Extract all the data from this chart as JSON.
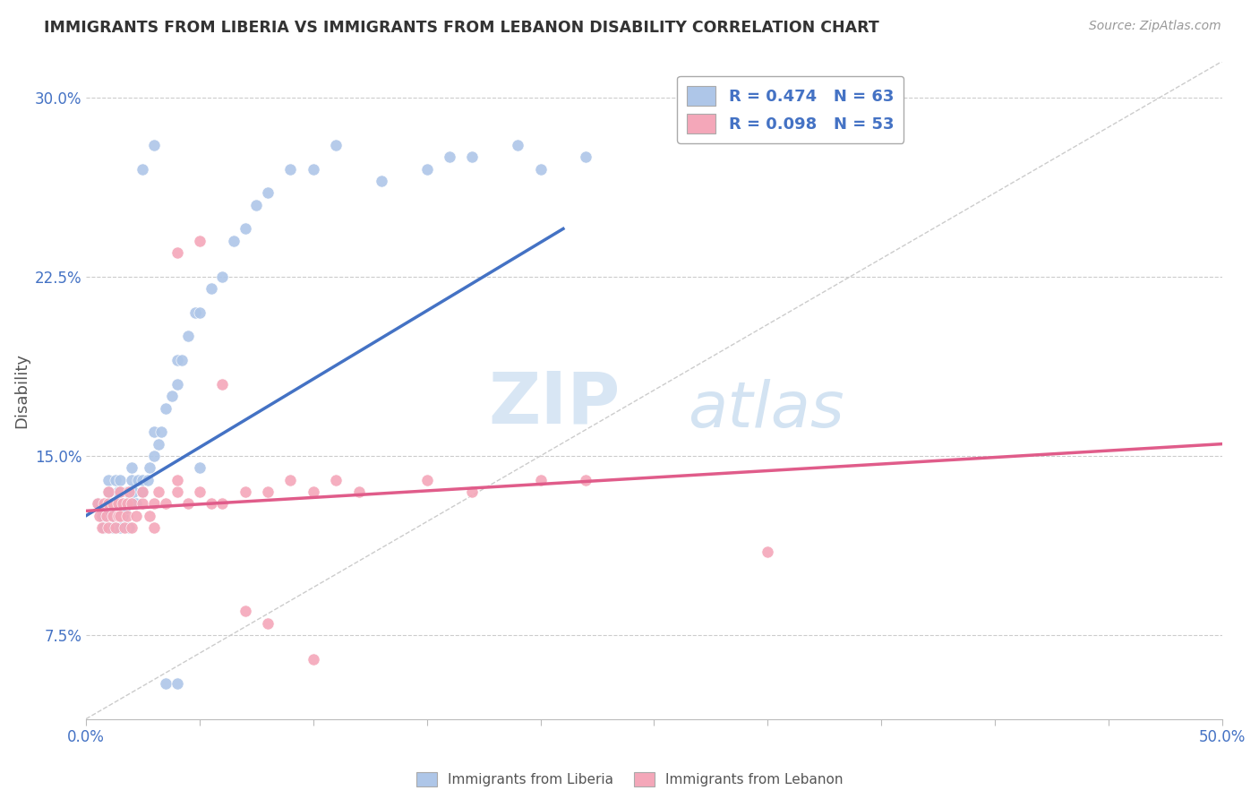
{
  "title": "IMMIGRANTS FROM LIBERIA VS IMMIGRANTS FROM LEBANON DISABILITY CORRELATION CHART",
  "source": "Source: ZipAtlas.com",
  "xlabel": "",
  "ylabel": "Disability",
  "xlim": [
    0.0,
    0.5
  ],
  "ylim": [
    0.04,
    0.315
  ],
  "xticks": [
    0.0,
    0.05,
    0.1,
    0.15,
    0.2,
    0.25,
    0.3,
    0.35,
    0.4,
    0.45,
    0.5
  ],
  "yticks": [
    0.075,
    0.15,
    0.225,
    0.3
  ],
  "ytick_labels": [
    "7.5%",
    "15.0%",
    "22.5%",
    "30.0%"
  ],
  "liberia_R": 0.474,
  "liberia_N": 63,
  "lebanon_R": 0.098,
  "lebanon_N": 53,
  "liberia_color": "#AEC6E8",
  "lebanon_color": "#F4A7B9",
  "liberia_line_color": "#4472C4",
  "lebanon_line_color": "#E05C8A",
  "legend_text_color": "#4472C4",
  "watermark_zip": "ZIP",
  "watermark_atlas": "atlas",
  "liberia_x": [
    0.005,
    0.007,
    0.008,
    0.009,
    0.01,
    0.01,
    0.01,
    0.012,
    0.012,
    0.013,
    0.013,
    0.014,
    0.015,
    0.015,
    0.015,
    0.016,
    0.017,
    0.018,
    0.018,
    0.019,
    0.02,
    0.02,
    0.02,
    0.021,
    0.022,
    0.023,
    0.025,
    0.025,
    0.027,
    0.028,
    0.03,
    0.03,
    0.032,
    0.033,
    0.035,
    0.038,
    0.04,
    0.04,
    0.042,
    0.045,
    0.048,
    0.05,
    0.055,
    0.06,
    0.065,
    0.07,
    0.075,
    0.08,
    0.09,
    0.1,
    0.11,
    0.13,
    0.15,
    0.16,
    0.17,
    0.19,
    0.2,
    0.22,
    0.025,
    0.03,
    0.035,
    0.04,
    0.05
  ],
  "liberia_y": [
    0.13,
    0.125,
    0.12,
    0.128,
    0.13,
    0.135,
    0.14,
    0.12,
    0.125,
    0.13,
    0.14,
    0.135,
    0.12,
    0.13,
    0.14,
    0.125,
    0.128,
    0.13,
    0.135,
    0.12,
    0.13,
    0.14,
    0.145,
    0.135,
    0.13,
    0.14,
    0.135,
    0.14,
    0.14,
    0.145,
    0.15,
    0.16,
    0.155,
    0.16,
    0.17,
    0.175,
    0.18,
    0.19,
    0.19,
    0.2,
    0.21,
    0.21,
    0.22,
    0.225,
    0.24,
    0.245,
    0.255,
    0.26,
    0.27,
    0.27,
    0.28,
    0.265,
    0.27,
    0.275,
    0.275,
    0.28,
    0.27,
    0.275,
    0.27,
    0.28,
    0.055,
    0.055,
    0.145
  ],
  "lebanon_x": [
    0.005,
    0.006,
    0.007,
    0.008,
    0.009,
    0.01,
    0.01,
    0.01,
    0.012,
    0.012,
    0.013,
    0.014,
    0.014,
    0.015,
    0.015,
    0.016,
    0.017,
    0.018,
    0.018,
    0.019,
    0.02,
    0.02,
    0.022,
    0.025,
    0.025,
    0.028,
    0.03,
    0.03,
    0.032,
    0.035,
    0.04,
    0.04,
    0.045,
    0.05,
    0.055,
    0.06,
    0.07,
    0.08,
    0.09,
    0.1,
    0.11,
    0.12,
    0.15,
    0.17,
    0.2,
    0.22,
    0.3,
    0.04,
    0.05,
    0.06,
    0.07,
    0.08,
    0.1
  ],
  "lebanon_y": [
    0.13,
    0.125,
    0.12,
    0.13,
    0.125,
    0.12,
    0.13,
    0.135,
    0.125,
    0.13,
    0.12,
    0.125,
    0.13,
    0.125,
    0.135,
    0.13,
    0.12,
    0.125,
    0.13,
    0.135,
    0.12,
    0.13,
    0.125,
    0.13,
    0.135,
    0.125,
    0.12,
    0.13,
    0.135,
    0.13,
    0.135,
    0.14,
    0.13,
    0.135,
    0.13,
    0.13,
    0.135,
    0.135,
    0.14,
    0.135,
    0.14,
    0.135,
    0.14,
    0.135,
    0.14,
    0.14,
    0.11,
    0.235,
    0.24,
    0.18,
    0.085,
    0.08,
    0.065
  ],
  "liberia_trend_x": [
    0.0,
    0.21
  ],
  "liberia_trend_y": [
    0.125,
    0.245
  ],
  "lebanon_trend_x": [
    0.0,
    0.5
  ],
  "lebanon_trend_y": [
    0.127,
    0.155
  ]
}
